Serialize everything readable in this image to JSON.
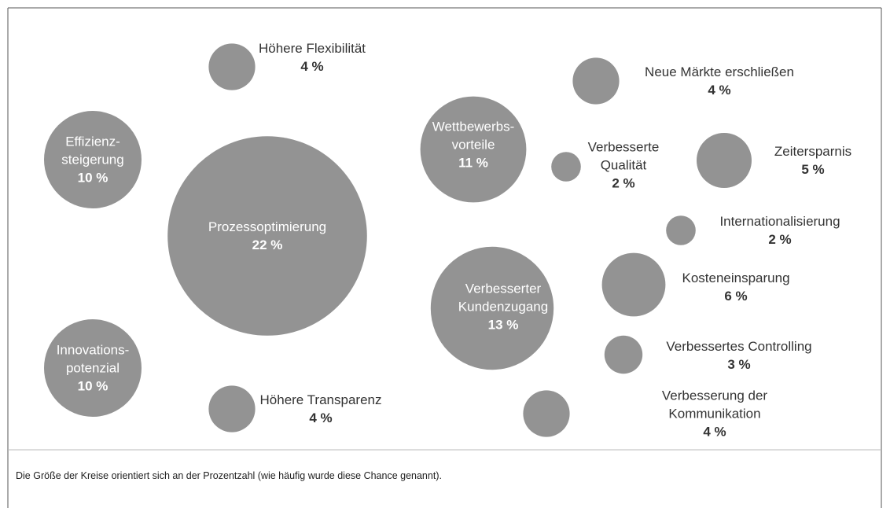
{
  "chart_data": {
    "type": "bubble",
    "categories": [
      "Höhere Flexibilität",
      "Effizienz-\nsteigerung",
      "Prozessoptimierung",
      "Innovations-\npotenzial",
      "Höhere Transparenz",
      "Wettbewerbs-\nvorteile",
      "Verbesserte\nQualität",
      "Neue Märkte erschließen",
      "Zeitersparnis",
      "Internationalisierung",
      "Verbesserter\nKundenzugang",
      "Kosteneinsparung",
      "Verbessertes Controlling",
      "Verbesserung der Kommunikation"
    ],
    "values": [
      4,
      10,
      22,
      10,
      4,
      11,
      2,
      4,
      5,
      2,
      13,
      6,
      3,
      4
    ],
    "value_labels": [
      "4 %",
      "10 %",
      "22 %",
      "10 %",
      "4 %",
      "11 %",
      "2 %",
      "4 %",
      "5 %",
      "2 %",
      "13 %",
      "6 %",
      "3 %",
      "4 %"
    ],
    "color": "#939393",
    "note": "Die Größe der Kreise orientiert sich an der Prozentzahl (wie häufig wurde diese Chance genannt)."
  }
}
